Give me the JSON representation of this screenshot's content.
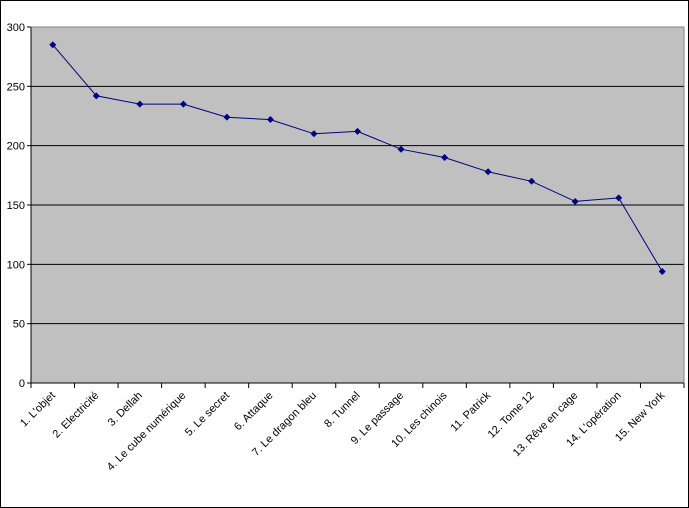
{
  "chart_data": {
    "type": "line",
    "title": "",
    "xlabel": "",
    "ylabel": "",
    "ylim": [
      0,
      300
    ],
    "yticks": [
      0,
      50,
      100,
      150,
      200,
      250,
      300
    ],
    "grid": true,
    "legend": "none",
    "categories": [
      "1. L'objet",
      "2. Electricité",
      "3. Dellah",
      "4. Le cube numérique",
      "5. Le secret",
      "6. Attaque",
      "7. Le dragon bleu",
      "8. Tunnel",
      "9. Le passage",
      "10. Les chinois",
      "11. Patrick",
      "12. Tome 12",
      "13. Rêve en cage",
      "14. L'opération",
      "15. New York"
    ],
    "series": [
      {
        "values": [
          285,
          242,
          235,
          235,
          224,
          222,
          210,
          212,
          197,
          190,
          178,
          170,
          153,
          156,
          94
        ]
      }
    ],
    "colors": {
      "plot_bg": "#c0c0c0",
      "line": "#000080",
      "marker": "#000080",
      "grid": "#000000"
    }
  }
}
